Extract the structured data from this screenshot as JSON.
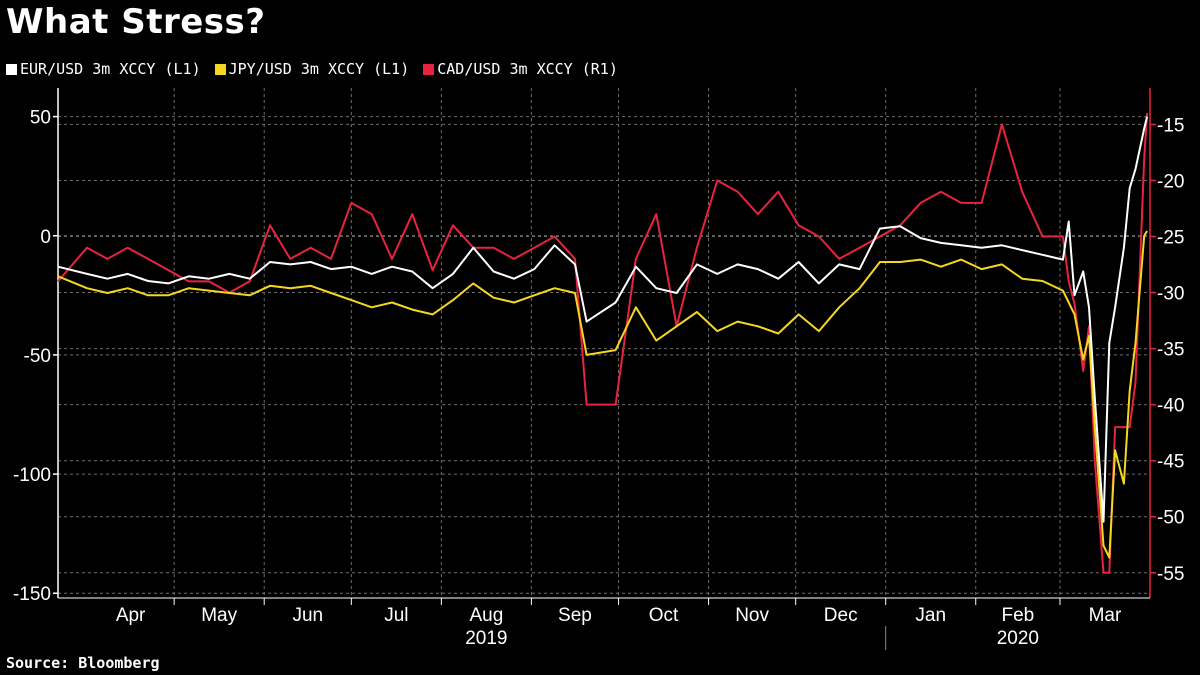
{
  "colors": {
    "background": "#000000",
    "eur": "#ffffff",
    "jpy": "#f5d722",
    "cad": "#e8233f",
    "right_axis": "#e8233f",
    "grid": "#6e6e6e"
  },
  "chart_data": {
    "type": "line",
    "title": "What Stress?",
    "source": "Source: Bloomberg",
    "legend_placement": "top-left",
    "grid": true,
    "x_months": [
      {
        "label": "Apr",
        "start": "2019-04-01",
        "end": "2019-05-01"
      },
      {
        "label": "May",
        "start": "2019-05-01",
        "end": "2019-06-01"
      },
      {
        "label": "Jun",
        "start": "2019-06-01",
        "end": "2019-07-01"
      },
      {
        "label": "Jul",
        "start": "2019-07-01",
        "end": "2019-08-01"
      },
      {
        "label": "Aug",
        "start": "2019-08-01",
        "end": "2019-09-01"
      },
      {
        "label": "Sep",
        "start": "2019-09-01",
        "end": "2019-10-01"
      },
      {
        "label": "Oct",
        "start": "2019-10-01",
        "end": "2019-11-01"
      },
      {
        "label": "Nov",
        "start": "2019-11-01",
        "end": "2019-12-01"
      },
      {
        "label": "Dec",
        "start": "2019-12-01",
        "end": "2020-01-01"
      },
      {
        "label": "Jan",
        "start": "2020-01-01",
        "end": "2020-02-01"
      },
      {
        "label": "Feb",
        "start": "2020-02-01",
        "end": "2020-03-01"
      },
      {
        "label": "Mar",
        "start": "2020-03-01",
        "end": "2020-04-01"
      }
    ],
    "x_years": [
      {
        "label": "2019",
        "start": "2019-04-01",
        "end": "2020-01-01"
      },
      {
        "label": "2020",
        "start": "2020-01-01",
        "end": "2020-04-01"
      }
    ],
    "xlim": [
      "2019-03-22",
      "2020-04-01"
    ],
    "y_left": {
      "ylim": [
        -152,
        62
      ],
      "ticks": [
        50,
        0,
        -50,
        -100,
        -150
      ]
    },
    "y_right": {
      "ylim": [
        -57.25,
        -11.75
      ],
      "ticks": [
        -15,
        -20,
        -25,
        -30,
        -35,
        -40,
        -45,
        -50,
        -55
      ]
    },
    "series": [
      {
        "key": "eur",
        "name": "EUR/USD 3m XCCY (L1)",
        "axis": "left",
        "points": [
          [
            "2019-03-22",
            -13
          ],
          [
            "2019-04-01",
            -16
          ],
          [
            "2019-04-08",
            -18
          ],
          [
            "2019-04-15",
            -16
          ],
          [
            "2019-04-22",
            -19
          ],
          [
            "2019-04-29",
            -20
          ],
          [
            "2019-05-06",
            -17
          ],
          [
            "2019-05-13",
            -18
          ],
          [
            "2019-05-20",
            -16
          ],
          [
            "2019-05-27",
            -18
          ],
          [
            "2019-06-03",
            -11
          ],
          [
            "2019-06-10",
            -12
          ],
          [
            "2019-06-17",
            -11
          ],
          [
            "2019-06-24",
            -14
          ],
          [
            "2019-07-01",
            -13
          ],
          [
            "2019-07-08",
            -16
          ],
          [
            "2019-07-15",
            -13
          ],
          [
            "2019-07-22",
            -15
          ],
          [
            "2019-07-29",
            -22
          ],
          [
            "2019-08-05",
            -16
          ],
          [
            "2019-08-12",
            -5
          ],
          [
            "2019-08-19",
            -15
          ],
          [
            "2019-08-26",
            -18
          ],
          [
            "2019-09-02",
            -14
          ],
          [
            "2019-09-09",
            -4
          ],
          [
            "2019-09-16",
            -12
          ],
          [
            "2019-09-20",
            -36
          ],
          [
            "2019-09-30",
            -28
          ],
          [
            "2019-10-07",
            -13
          ],
          [
            "2019-10-14",
            -22
          ],
          [
            "2019-10-21",
            -24
          ],
          [
            "2019-10-28",
            -12
          ],
          [
            "2019-11-04",
            -16
          ],
          [
            "2019-11-11",
            -12
          ],
          [
            "2019-11-18",
            -14
          ],
          [
            "2019-11-25",
            -18
          ],
          [
            "2019-12-02",
            -11
          ],
          [
            "2019-12-09",
            -20
          ],
          [
            "2019-12-16",
            -12
          ],
          [
            "2019-12-23",
            -14
          ],
          [
            "2019-12-30",
            3
          ],
          [
            "2020-01-06",
            4
          ],
          [
            "2020-01-13",
            -1
          ],
          [
            "2020-01-20",
            -3
          ],
          [
            "2020-01-27",
            -4
          ],
          [
            "2020-02-03",
            -5
          ],
          [
            "2020-02-10",
            -4
          ],
          [
            "2020-02-17",
            -6
          ],
          [
            "2020-02-24",
            -8
          ],
          [
            "2020-03-02",
            -10
          ],
          [
            "2020-03-04",
            6
          ],
          [
            "2020-03-06",
            -25
          ],
          [
            "2020-03-09",
            -15
          ],
          [
            "2020-03-11",
            -30
          ],
          [
            "2020-03-13",
            -68
          ],
          [
            "2020-03-16",
            -120
          ],
          [
            "2020-03-18",
            -45
          ],
          [
            "2020-03-20",
            -30
          ],
          [
            "2020-03-23",
            -5
          ],
          [
            "2020-03-25",
            20
          ],
          [
            "2020-03-27",
            28
          ],
          [
            "2020-03-30",
            45
          ],
          [
            "2020-03-31",
            50
          ]
        ]
      },
      {
        "key": "jpy",
        "name": "JPY/USD 3m XCCY (L1)",
        "axis": "left",
        "points": [
          [
            "2019-03-22",
            -17
          ],
          [
            "2019-04-01",
            -22
          ],
          [
            "2019-04-08",
            -24
          ],
          [
            "2019-04-15",
            -22
          ],
          [
            "2019-04-22",
            -25
          ],
          [
            "2019-04-29",
            -25
          ],
          [
            "2019-05-06",
            -22
          ],
          [
            "2019-05-13",
            -23
          ],
          [
            "2019-05-20",
            -24
          ],
          [
            "2019-05-27",
            -25
          ],
          [
            "2019-06-03",
            -21
          ],
          [
            "2019-06-10",
            -22
          ],
          [
            "2019-06-17",
            -21
          ],
          [
            "2019-06-24",
            -24
          ],
          [
            "2019-07-01",
            -27
          ],
          [
            "2019-07-08",
            -30
          ],
          [
            "2019-07-15",
            -28
          ],
          [
            "2019-07-22",
            -31
          ],
          [
            "2019-07-29",
            -33
          ],
          [
            "2019-08-05",
            -27
          ],
          [
            "2019-08-12",
            -20
          ],
          [
            "2019-08-19",
            -26
          ],
          [
            "2019-08-26",
            -28
          ],
          [
            "2019-09-02",
            -25
          ],
          [
            "2019-09-09",
            -22
          ],
          [
            "2019-09-16",
            -24
          ],
          [
            "2019-09-20",
            -50
          ],
          [
            "2019-09-30",
            -48
          ],
          [
            "2019-10-07",
            -30
          ],
          [
            "2019-10-14",
            -44
          ],
          [
            "2019-10-21",
            -38
          ],
          [
            "2019-10-28",
            -32
          ],
          [
            "2019-11-04",
            -40
          ],
          [
            "2019-11-11",
            -36
          ],
          [
            "2019-11-18",
            -38
          ],
          [
            "2019-11-25",
            -41
          ],
          [
            "2019-12-02",
            -33
          ],
          [
            "2019-12-09",
            -40
          ],
          [
            "2019-12-16",
            -30
          ],
          [
            "2019-12-23",
            -22
          ],
          [
            "2019-12-30",
            -11
          ],
          [
            "2020-01-06",
            -11
          ],
          [
            "2020-01-13",
            -10
          ],
          [
            "2020-01-20",
            -13
          ],
          [
            "2020-01-27",
            -10
          ],
          [
            "2020-02-03",
            -14
          ],
          [
            "2020-02-10",
            -12
          ],
          [
            "2020-02-17",
            -18
          ],
          [
            "2020-02-24",
            -19
          ],
          [
            "2020-03-02",
            -23
          ],
          [
            "2020-03-04",
            -28
          ],
          [
            "2020-03-06",
            -33
          ],
          [
            "2020-03-09",
            -52
          ],
          [
            "2020-03-11",
            -42
          ],
          [
            "2020-03-13",
            -80
          ],
          [
            "2020-03-16",
            -130
          ],
          [
            "2020-03-18",
            -135
          ],
          [
            "2020-03-20",
            -90
          ],
          [
            "2020-03-23",
            -104
          ],
          [
            "2020-03-25",
            -65
          ],
          [
            "2020-03-27",
            -45
          ],
          [
            "2020-03-30",
            0
          ],
          [
            "2020-03-31",
            2
          ]
        ]
      },
      {
        "key": "cad",
        "name": "CAD/USD 3m XCCY (R1)",
        "axis": "right",
        "points": [
          [
            "2019-03-22",
            -29
          ],
          [
            "2019-04-01",
            -26
          ],
          [
            "2019-04-08",
            -27
          ],
          [
            "2019-04-15",
            -26
          ],
          [
            "2019-04-22",
            -27
          ],
          [
            "2019-04-29",
            -28
          ],
          [
            "2019-05-06",
            -29
          ],
          [
            "2019-05-13",
            -29
          ],
          [
            "2019-05-20",
            -30
          ],
          [
            "2019-05-27",
            -29
          ],
          [
            "2019-06-03",
            -24
          ],
          [
            "2019-06-10",
            -27
          ],
          [
            "2019-06-17",
            -26
          ],
          [
            "2019-06-24",
            -27
          ],
          [
            "2019-07-01",
            -22
          ],
          [
            "2019-07-08",
            -23
          ],
          [
            "2019-07-15",
            -27
          ],
          [
            "2019-07-22",
            -23
          ],
          [
            "2019-07-29",
            -28
          ],
          [
            "2019-08-05",
            -24
          ],
          [
            "2019-08-12",
            -26
          ],
          [
            "2019-08-19",
            -26
          ],
          [
            "2019-08-26",
            -27
          ],
          [
            "2019-09-02",
            -26
          ],
          [
            "2019-09-09",
            -25
          ],
          [
            "2019-09-16",
            -27
          ],
          [
            "2019-09-20",
            -40
          ],
          [
            "2019-09-30",
            -40
          ],
          [
            "2019-10-07",
            -27
          ],
          [
            "2019-10-14",
            -23
          ],
          [
            "2019-10-21",
            -33
          ],
          [
            "2019-10-28",
            -26
          ],
          [
            "2019-11-04",
            -20
          ],
          [
            "2019-11-11",
            -21
          ],
          [
            "2019-11-18",
            -23
          ],
          [
            "2019-11-25",
            -21
          ],
          [
            "2019-12-02",
            -24
          ],
          [
            "2019-12-09",
            -25
          ],
          [
            "2019-12-16",
            -27
          ],
          [
            "2019-12-23",
            -26
          ],
          [
            "2019-12-30",
            -25
          ],
          [
            "2020-01-06",
            -24
          ],
          [
            "2020-01-13",
            -22
          ],
          [
            "2020-01-20",
            -21
          ],
          [
            "2020-01-27",
            -22
          ],
          [
            "2020-02-03",
            -22
          ],
          [
            "2020-02-10",
            -15
          ],
          [
            "2020-02-17",
            -21
          ],
          [
            "2020-02-24",
            -25
          ],
          [
            "2020-03-02",
            -25
          ],
          [
            "2020-03-04",
            -29
          ],
          [
            "2020-03-06",
            -31
          ],
          [
            "2020-03-09",
            -37
          ],
          [
            "2020-03-11",
            -33
          ],
          [
            "2020-03-13",
            -45
          ],
          [
            "2020-03-16",
            -55
          ],
          [
            "2020-03-18",
            -55
          ],
          [
            "2020-03-20",
            -42
          ],
          [
            "2020-03-23",
            -42
          ],
          [
            "2020-03-25",
            -42
          ],
          [
            "2020-03-27",
            -38
          ],
          [
            "2020-03-30",
            -18
          ],
          [
            "2020-03-31",
            -14
          ]
        ]
      }
    ]
  }
}
